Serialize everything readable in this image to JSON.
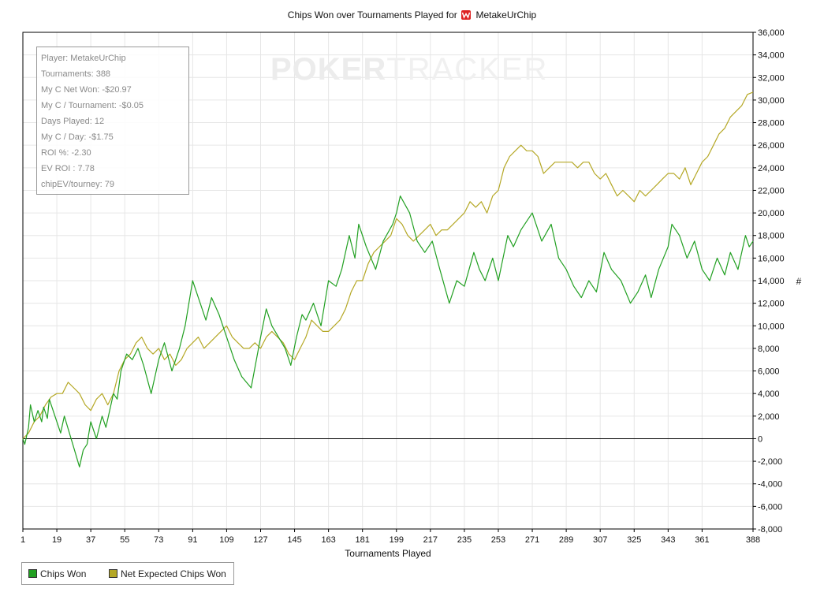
{
  "chart_data": {
    "type": "line",
    "title_prefix": "Chips Won over Tournaments Played for",
    "player_name": "MetakeUrChip",
    "xlabel": "Tournaments Played",
    "ylabel": "#",
    "xlim": [
      1,
      388
    ],
    "ylim": [
      -8000,
      36000
    ],
    "x_ticks": [
      1,
      19,
      37,
      55,
      73,
      91,
      109,
      127,
      145,
      163,
      181,
      199,
      217,
      235,
      253,
      271,
      289,
      307,
      325,
      343,
      361,
      388
    ],
    "y_ticks": [
      -8000,
      -6000,
      -4000,
      -2000,
      0,
      2000,
      4000,
      6000,
      8000,
      10000,
      12000,
      14000,
      16000,
      18000,
      20000,
      22000,
      24000,
      26000,
      28000,
      30000,
      32000,
      34000,
      36000
    ],
    "y_tick_labels": [
      "-8,000",
      "-6,000",
      "-4,000",
      "-2,000",
      "0",
      "2,000",
      "4,000",
      "6,000",
      "8,000",
      "10,000",
      "12,000",
      "14,000",
      "16,000",
      "18,000",
      "20,000",
      "22,000",
      "24,000",
      "26,000",
      "28,000",
      "30,000",
      "32,000",
      "34,000",
      "36,000"
    ],
    "grid": true,
    "legend_position": "bottom-left",
    "series": [
      {
        "name": "Chips Won",
        "color": "#22a022",
        "points": [
          [
            1,
            0
          ],
          [
            2,
            -500
          ],
          [
            4,
            1000
          ],
          [
            5,
            3000
          ],
          [
            7,
            1500
          ],
          [
            9,
            2500
          ],
          [
            11,
            1500
          ],
          [
            12,
            2800
          ],
          [
            14,
            1800
          ],
          [
            15,
            3500
          ],
          [
            19,
            1500
          ],
          [
            21,
            500
          ],
          [
            23,
            2000
          ],
          [
            28,
            -800
          ],
          [
            31,
            -2500
          ],
          [
            33,
            -1000
          ],
          [
            35,
            -500
          ],
          [
            37,
            1500
          ],
          [
            40,
            0
          ],
          [
            43,
            2000
          ],
          [
            45,
            1000
          ],
          [
            49,
            4000
          ],
          [
            51,
            3500
          ],
          [
            53,
            6000
          ],
          [
            56,
            7500
          ],
          [
            59,
            7000
          ],
          [
            62,
            8000
          ],
          [
            65,
            6500
          ],
          [
            69,
            4000
          ],
          [
            73,
            7000
          ],
          [
            76,
            8500
          ],
          [
            80,
            6000
          ],
          [
            84,
            8000
          ],
          [
            87,
            10000
          ],
          [
            91,
            14000
          ],
          [
            95,
            12000
          ],
          [
            98,
            10500
          ],
          [
            101,
            12500
          ],
          [
            105,
            11000
          ],
          [
            109,
            9000
          ],
          [
            113,
            7000
          ],
          [
            117,
            5500
          ],
          [
            122,
            4500
          ],
          [
            127,
            9000
          ],
          [
            130,
            11500
          ],
          [
            133,
            10000
          ],
          [
            140,
            8000
          ],
          [
            143,
            6500
          ],
          [
            146,
            9000
          ],
          [
            149,
            11000
          ],
          [
            151,
            10500
          ],
          [
            155,
            12000
          ],
          [
            159,
            10000
          ],
          [
            163,
            14000
          ],
          [
            167,
            13500
          ],
          [
            170,
            15000
          ],
          [
            174,
            18000
          ],
          [
            177,
            16000
          ],
          [
            179,
            19000
          ],
          [
            183,
            17000
          ],
          [
            188,
            15000
          ],
          [
            192,
            17500
          ],
          [
            197,
            19000
          ],
          [
            199,
            20000
          ],
          [
            201,
            21500
          ],
          [
            206,
            20000
          ],
          [
            210,
            17500
          ],
          [
            214,
            16500
          ],
          [
            218,
            17500
          ],
          [
            222,
            15000
          ],
          [
            227,
            12000
          ],
          [
            231,
            14000
          ],
          [
            235,
            13500
          ],
          [
            240,
            16500
          ],
          [
            243,
            15000
          ],
          [
            246,
            14000
          ],
          [
            250,
            16000
          ],
          [
            253,
            14000
          ],
          [
            258,
            18000
          ],
          [
            261,
            17000
          ],
          [
            265,
            18500
          ],
          [
            271,
            20000
          ],
          [
            276,
            17500
          ],
          [
            281,
            19000
          ],
          [
            285,
            16000
          ],
          [
            289,
            15000
          ],
          [
            293,
            13500
          ],
          [
            297,
            12500
          ],
          [
            301,
            14000
          ],
          [
            305,
            13000
          ],
          [
            309,
            16500
          ],
          [
            313,
            15000
          ],
          [
            318,
            14000
          ],
          [
            323,
            12000
          ],
          [
            327,
            13000
          ],
          [
            331,
            14500
          ],
          [
            334,
            12500
          ],
          [
            338,
            15000
          ],
          [
            343,
            17000
          ],
          [
            345,
            19000
          ],
          [
            349,
            18000
          ],
          [
            353,
            16000
          ],
          [
            357,
            17500
          ],
          [
            361,
            15000
          ],
          [
            365,
            14000
          ],
          [
            369,
            16000
          ],
          [
            373,
            14500
          ],
          [
            376,
            16500
          ],
          [
            380,
            15000
          ],
          [
            384,
            18000
          ],
          [
            386,
            17000
          ],
          [
            388,
            17500
          ]
        ]
      },
      {
        "name": "Net Expected Chips Won",
        "color": "#b5a826",
        "points": [
          [
            1,
            0
          ],
          [
            4,
            500
          ],
          [
            7,
            1500
          ],
          [
            10,
            2000
          ],
          [
            13,
            3000
          ],
          [
            16,
            3700
          ],
          [
            19,
            4000
          ],
          [
            22,
            4000
          ],
          [
            25,
            5000
          ],
          [
            28,
            4500
          ],
          [
            31,
            4000
          ],
          [
            34,
            3000
          ],
          [
            37,
            2500
          ],
          [
            40,
            3500
          ],
          [
            43,
            4000
          ],
          [
            46,
            3000
          ],
          [
            49,
            4000
          ],
          [
            52,
            6000
          ],
          [
            55,
            7000
          ],
          [
            58,
            7500
          ],
          [
            61,
            8500
          ],
          [
            64,
            9000
          ],
          [
            67,
            8000
          ],
          [
            70,
            7500
          ],
          [
            73,
            8000
          ],
          [
            76,
            7000
          ],
          [
            79,
            7500
          ],
          [
            82,
            6500
          ],
          [
            85,
            7000
          ],
          [
            88,
            8000
          ],
          [
            91,
            8500
          ],
          [
            94,
            9000
          ],
          [
            97,
            8000
          ],
          [
            100,
            8500
          ],
          [
            103,
            9000
          ],
          [
            106,
            9500
          ],
          [
            109,
            10000
          ],
          [
            112,
            9000
          ],
          [
            115,
            8500
          ],
          [
            118,
            8000
          ],
          [
            121,
            8000
          ],
          [
            124,
            8500
          ],
          [
            127,
            8000
          ],
          [
            130,
            9000
          ],
          [
            133,
            9500
          ],
          [
            136,
            9000
          ],
          [
            139,
            8500
          ],
          [
            142,
            7500
          ],
          [
            145,
            7000
          ],
          [
            148,
            8000
          ],
          [
            151,
            9000
          ],
          [
            154,
            10500
          ],
          [
            157,
            10000
          ],
          [
            160,
            9500
          ],
          [
            163,
            9500
          ],
          [
            166,
            10000
          ],
          [
            169,
            10500
          ],
          [
            172,
            11500
          ],
          [
            175,
            13000
          ],
          [
            178,
            14000
          ],
          [
            181,
            14000
          ],
          [
            184,
            15500
          ],
          [
            187,
            16500
          ],
          [
            190,
            17000
          ],
          [
            193,
            17500
          ],
          [
            196,
            18000
          ],
          [
            199,
            19500
          ],
          [
            202,
            19000
          ],
          [
            205,
            18000
          ],
          [
            208,
            17500
          ],
          [
            211,
            18000
          ],
          [
            214,
            18500
          ],
          [
            217,
            19000
          ],
          [
            220,
            18000
          ],
          [
            223,
            18500
          ],
          [
            226,
            18500
          ],
          [
            229,
            19000
          ],
          [
            232,
            19500
          ],
          [
            235,
            20000
          ],
          [
            238,
            21000
          ],
          [
            241,
            20500
          ],
          [
            244,
            21000
          ],
          [
            247,
            20000
          ],
          [
            250,
            21500
          ],
          [
            253,
            22000
          ],
          [
            256,
            24000
          ],
          [
            259,
            25000
          ],
          [
            262,
            25500
          ],
          [
            265,
            26000
          ],
          [
            268,
            25500
          ],
          [
            271,
            25500
          ],
          [
            274,
            25000
          ],
          [
            277,
            23500
          ],
          [
            280,
            24000
          ],
          [
            283,
            24500
          ],
          [
            286,
            24500
          ],
          [
            289,
            24500
          ],
          [
            292,
            24500
          ],
          [
            295,
            24000
          ],
          [
            298,
            24500
          ],
          [
            301,
            24500
          ],
          [
            304,
            23500
          ],
          [
            307,
            23000
          ],
          [
            310,
            23500
          ],
          [
            313,
            22500
          ],
          [
            316,
            21500
          ],
          [
            319,
            22000
          ],
          [
            322,
            21500
          ],
          [
            325,
            21000
          ],
          [
            328,
            22000
          ],
          [
            331,
            21500
          ],
          [
            334,
            22000
          ],
          [
            337,
            22500
          ],
          [
            340,
            23000
          ],
          [
            343,
            23500
          ],
          [
            346,
            23500
          ],
          [
            349,
            23000
          ],
          [
            352,
            24000
          ],
          [
            355,
            22500
          ],
          [
            358,
            23500
          ],
          [
            361,
            24500
          ],
          [
            364,
            25000
          ],
          [
            367,
            26000
          ],
          [
            370,
            27000
          ],
          [
            373,
            27500
          ],
          [
            376,
            28500
          ],
          [
            379,
            29000
          ],
          [
            382,
            29500
          ],
          [
            385,
            30500
          ],
          [
            388,
            30700
          ]
        ]
      }
    ]
  },
  "stats": {
    "player": "Player: MetakeUrChip",
    "tournaments": "Tournaments: 388",
    "net_won": "My C Net Won: -$20.97",
    "per_tournament": "My C / Tournament: -$0.05",
    "days_played": "Days Played: 12",
    "per_day": "My C / Day: -$1.75",
    "roi": "ROI %: -2.30",
    "ev_roi": "EV ROI : 7.78",
    "chipev": "chipEV/tourney: 79"
  },
  "watermark": {
    "a": "POKER",
    "b": "TRACKER"
  }
}
